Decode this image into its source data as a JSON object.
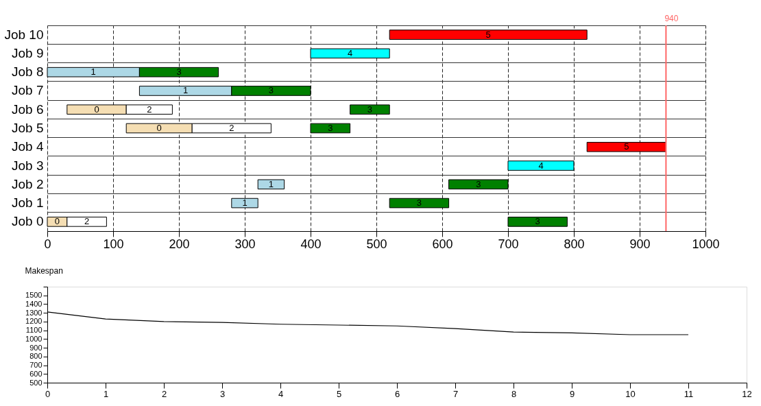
{
  "chart_data": [
    {
      "type": "bar",
      "orientation": "horizontal",
      "categories": [
        "Job 10",
        "Job 9",
        "Job 8",
        "Job 7",
        "Job 6",
        "Job 5",
        "Job 4",
        "Job 3",
        "Job 2",
        "Job 1",
        "Job 0"
      ],
      "series": [
        {
          "name": "0",
          "color": "#f5deb3",
          "base": [
            null,
            null,
            null,
            null,
            30,
            120,
            null,
            null,
            null,
            null,
            0
          ],
          "values": [
            null,
            null,
            null,
            null,
            90,
            100,
            null,
            null,
            null,
            null,
            30
          ]
        },
        {
          "name": "1",
          "color": "#add8e6",
          "base": [
            null,
            null,
            0,
            140,
            null,
            null,
            null,
            null,
            320,
            280,
            null
          ],
          "values": [
            null,
            null,
            140,
            140,
            null,
            null,
            null,
            null,
            40,
            40,
            null
          ]
        },
        {
          "name": "2",
          "color": "#ffffff",
          "base": [
            null,
            null,
            null,
            null,
            120,
            220,
            null,
            null,
            null,
            null,
            30
          ],
          "values": [
            null,
            null,
            null,
            null,
            70,
            120,
            null,
            null,
            null,
            null,
            60
          ]
        },
        {
          "name": "3",
          "color": "#008000",
          "base": [
            null,
            null,
            140,
            280,
            460,
            400,
            null,
            null,
            610,
            520,
            700
          ],
          "values": [
            null,
            null,
            120,
            120,
            60,
            60,
            null,
            null,
            90,
            90,
            90
          ]
        },
        {
          "name": "4",
          "color": "#00ffff",
          "base": [
            null,
            400,
            null,
            null,
            null,
            null,
            null,
            700,
            null,
            null,
            null
          ],
          "values": [
            null,
            120,
            null,
            null,
            null,
            null,
            null,
            100,
            null,
            null,
            null
          ]
        },
        {
          "name": "5",
          "color": "#ff0000",
          "base": [
            520,
            null,
            null,
            null,
            null,
            null,
            820,
            null,
            null,
            null,
            null
          ],
          "values": [
            300,
            null,
            null,
            null,
            null,
            null,
            120,
            null,
            null,
            null,
            null
          ]
        }
      ],
      "xlim": [
        0,
        1000
      ],
      "xticks": [
        0,
        100,
        200,
        300,
        400,
        500,
        600,
        700,
        800,
        900,
        1000
      ],
      "grid": true,
      "ref_lines": [
        {
          "axis": "x",
          "value": 940,
          "label": "940",
          "color": "#ff6666"
        }
      ]
    },
    {
      "type": "line",
      "title": "Makespan",
      "x": [
        0,
        1,
        2,
        3,
        4,
        5,
        6,
        7,
        8,
        9,
        10,
        11
      ],
      "series": [
        {
          "color": "#000000",
          "values": [
            1310,
            1230,
            1200,
            1190,
            1170,
            1160,
            1150,
            1120,
            1080,
            1070,
            1050,
            1050
          ]
        }
      ],
      "xlim": [
        0,
        12
      ],
      "xticks": [
        0,
        1,
        2,
        3,
        4,
        5,
        6,
        7,
        8,
        9,
        10,
        11,
        12
      ],
      "ylim": [
        500,
        1600
      ],
      "yticks": [
        500,
        600,
        700,
        800,
        900,
        1000,
        1100,
        1200,
        1300,
        1400,
        1500,
        {
          "value": 1600,
          "label": null
        }
      ],
      "grid": false,
      "marker": "none"
    }
  ]
}
